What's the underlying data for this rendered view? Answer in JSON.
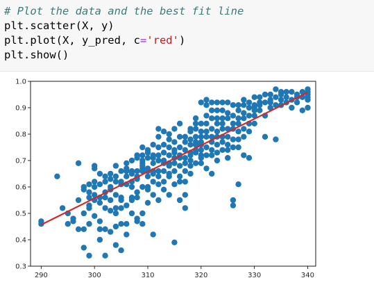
{
  "code": {
    "comment": "# Plot the data and the best fit line",
    "line2": "plt.scatter(X, y)",
    "line3_pre": "plt.plot(X, y_pred, c",
    "line3_op": "=",
    "line3_str": "'red'",
    "line3_post": ")",
    "line4": "plt.show()"
  },
  "colors": {
    "points": "#1f77b4",
    "fit_line": "#d62728",
    "code_bg": "#f7f7f7",
    "comment": "#3d7b7b",
    "string": "#ba2121"
  },
  "chart_data": {
    "type": "scatter",
    "xlim": [
      288,
      341.5
    ],
    "ylim": [
      0.3,
      1.0
    ],
    "x_ticks": [
      "290",
      "300",
      "310",
      "320",
      "330",
      "340"
    ],
    "y_ticks": [
      "0.3",
      "0.4",
      "0.5",
      "0.6",
      "0.7",
      "0.8",
      "0.9",
      "1.0"
    ],
    "grid": false,
    "legend": "none",
    "fit_line": {
      "x": [
        290,
        340
      ],
      "y": [
        0.457,
        0.958
      ],
      "color": "red"
    },
    "series": [
      {
        "points": [
          [
            290,
            0.46
          ],
          [
            290,
            0.47
          ],
          [
            293,
            0.64
          ],
          [
            294,
            0.52
          ],
          [
            295,
            0.46
          ],
          [
            295,
            0.5
          ],
          [
            296,
            0.47
          ],
          [
            296,
            0.48
          ],
          [
            297,
            0.55
          ],
          [
            297,
            0.69
          ],
          [
            297,
            0.44
          ],
          [
            298,
            0.59
          ],
          [
            298,
            0.5
          ],
          [
            298,
            0.44
          ],
          [
            298,
            0.37
          ],
          [
            298,
            0.6
          ],
          [
            299,
            0.56
          ],
          [
            299,
            0.58
          ],
          [
            299,
            0.52
          ],
          [
            299,
            0.61
          ],
          [
            299,
            0.53
          ],
          [
            299,
            0.34
          ],
          [
            299,
            0.46
          ],
          [
            300,
            0.68
          ],
          [
            300,
            0.57
          ],
          [
            300,
            0.49
          ],
          [
            300,
            0.62
          ],
          [
            300,
            0.55
          ],
          [
            300,
            0.67
          ],
          [
            300,
            0.6
          ],
          [
            301,
            0.61
          ],
          [
            301,
            0.47
          ],
          [
            301,
            0.44
          ],
          [
            301,
            0.4
          ],
          [
            301,
            0.54
          ],
          [
            301,
            0.65
          ],
          [
            301,
            0.56
          ],
          [
            302,
            0.34
          ],
          [
            302,
            0.62
          ],
          [
            302,
            0.58
          ],
          [
            302,
            0.52
          ],
          [
            302,
            0.44
          ],
          [
            302,
            0.64
          ],
          [
            302,
            0.56
          ],
          [
            303,
            0.63
          ],
          [
            303,
            0.59
          ],
          [
            303,
            0.65
          ],
          [
            303,
            0.55
          ],
          [
            303,
            0.43
          ],
          [
            303,
            0.51
          ],
          [
            303,
            0.6
          ],
          [
            304,
            0.57
          ],
          [
            304,
            0.52
          ],
          [
            304,
            0.62
          ],
          [
            304,
            0.5
          ],
          [
            304,
            0.45
          ],
          [
            304,
            0.38
          ],
          [
            304,
            0.64
          ],
          [
            304,
            0.68
          ],
          [
            305,
            0.55
          ],
          [
            305,
            0.56
          ],
          [
            305,
            0.52
          ],
          [
            305,
            0.66
          ],
          [
            305,
            0.61
          ],
          [
            305,
            0.46
          ],
          [
            305,
            0.36
          ],
          [
            305,
            0.62
          ],
          [
            306,
            0.67
          ],
          [
            306,
            0.69
          ],
          [
            306,
            0.64
          ],
          [
            306,
            0.53
          ],
          [
            306,
            0.46
          ],
          [
            306,
            0.61
          ],
          [
            306,
            0.66
          ],
          [
            306,
            0.42
          ],
          [
            307,
            0.7
          ],
          [
            307,
            0.56
          ],
          [
            307,
            0.6
          ],
          [
            307,
            0.66
          ],
          [
            307,
            0.5
          ],
          [
            307,
            0.65
          ],
          [
            307,
            0.55
          ],
          [
            307,
            0.62
          ],
          [
            308,
            0.63
          ],
          [
            308,
            0.66
          ],
          [
            308,
            0.72
          ],
          [
            308,
            0.58
          ],
          [
            308,
            0.56
          ],
          [
            308,
            0.48
          ],
          [
            308,
            0.64
          ],
          [
            308,
            0.71
          ],
          [
            308,
            0.47
          ],
          [
            309,
            0.72
          ],
          [
            309,
            0.69
          ],
          [
            309,
            0.67
          ],
          [
            309,
            0.6
          ],
          [
            309,
            0.68
          ],
          [
            309,
            0.66
          ],
          [
            309,
            0.5
          ],
          [
            309,
            0.46
          ],
          [
            309,
            0.75
          ],
          [
            309,
            0.7
          ],
          [
            310,
            0.74
          ],
          [
            310,
            0.71
          ],
          [
            310,
            0.67
          ],
          [
            310,
            0.59
          ],
          [
            310,
            0.73
          ],
          [
            310,
            0.54
          ],
          [
            310,
            0.64
          ],
          [
            310,
            0.6
          ],
          [
            310,
            0.66
          ],
          [
            311,
            0.69
          ],
          [
            311,
            0.76
          ],
          [
            311,
            0.66
          ],
          [
            311,
            0.72
          ],
          [
            311,
            0.57
          ],
          [
            311,
            0.71
          ],
          [
            311,
            0.62
          ],
          [
            311,
            0.42
          ],
          [
            311,
            0.65
          ],
          [
            312,
            0.7
          ],
          [
            312,
            0.61
          ],
          [
            312,
            0.79
          ],
          [
            312,
            0.75
          ],
          [
            312,
            0.64
          ],
          [
            312,
            0.55
          ],
          [
            312,
            0.72
          ],
          [
            312,
            0.82
          ],
          [
            312,
            0.66
          ],
          [
            313,
            0.73
          ],
          [
            313,
            0.7
          ],
          [
            313,
            0.76
          ],
          [
            313,
            0.62
          ],
          [
            313,
            0.69
          ],
          [
            313,
            0.59
          ],
          [
            313,
            0.81
          ],
          [
            313,
            0.66
          ],
          [
            314,
            0.72
          ],
          [
            314,
            0.78
          ],
          [
            314,
            0.68
          ],
          [
            314,
            0.57
          ],
          [
            314,
            0.75
          ],
          [
            314,
            0.69
          ],
          [
            314,
            0.64
          ],
          [
            314,
            0.8
          ],
          [
            314,
            0.65
          ],
          [
            315,
            0.74
          ],
          [
            315,
            0.71
          ],
          [
            315,
            0.69
          ],
          [
            315,
            0.77
          ],
          [
            315,
            0.61
          ],
          [
            315,
            0.66
          ],
          [
            315,
            0.82
          ],
          [
            315,
            0.73
          ],
          [
            315,
            0.39
          ],
          [
            316,
            0.71
          ],
          [
            316,
            0.68
          ],
          [
            316,
            0.75
          ],
          [
            316,
            0.64
          ],
          [
            316,
            0.55
          ],
          [
            316,
            0.72
          ],
          [
            316,
            0.84
          ],
          [
            316,
            0.79
          ],
          [
            316,
            0.62
          ],
          [
            317,
            0.71
          ],
          [
            317,
            0.77
          ],
          [
            317,
            0.66
          ],
          [
            317,
            0.74
          ],
          [
            317,
            0.69
          ],
          [
            317,
            0.57
          ],
          [
            317,
            0.62
          ],
          [
            317,
            0.79
          ],
          [
            317,
            0.52
          ],
          [
            318,
            0.72
          ],
          [
            318,
            0.78
          ],
          [
            318,
            0.76
          ],
          [
            318,
            0.68
          ],
          [
            318,
            0.73
          ],
          [
            318,
            0.65
          ],
          [
            318,
            0.82
          ],
          [
            318,
            0.81
          ],
          [
            318,
            0.7
          ],
          [
            319,
            0.74
          ],
          [
            319,
            0.84
          ],
          [
            319,
            0.77
          ],
          [
            319,
            0.69
          ],
          [
            319,
            0.79
          ],
          [
            319,
            0.73
          ],
          [
            319,
            0.82
          ],
          [
            319,
            0.76
          ],
          [
            319,
            0.86
          ],
          [
            320,
            0.72
          ],
          [
            320,
            0.79
          ],
          [
            320,
            0.84
          ],
          [
            320,
            0.74
          ],
          [
            320,
            0.69
          ],
          [
            320,
            0.77
          ],
          [
            320,
            0.81
          ],
          [
            320,
            0.92
          ],
          [
            320,
            0.71
          ],
          [
            320,
            0.76
          ],
          [
            321,
            0.75
          ],
          [
            321,
            0.81
          ],
          [
            321,
            0.84
          ],
          [
            321,
            0.79
          ],
          [
            321,
            0.72
          ],
          [
            321,
            0.67
          ],
          [
            321,
            0.87
          ],
          [
            321,
            0.91
          ],
          [
            321,
            0.93
          ],
          [
            322,
            0.82
          ],
          [
            322,
            0.77
          ],
          [
            322,
            0.86
          ],
          [
            322,
            0.72
          ],
          [
            322,
            0.79
          ],
          [
            322,
            0.89
          ],
          [
            322,
            0.74
          ],
          [
            322,
            0.92
          ],
          [
            322,
            0.65
          ],
          [
            323,
            0.76
          ],
          [
            323,
            0.81
          ],
          [
            323,
            0.84
          ],
          [
            323,
            0.73
          ],
          [
            323,
            0.79
          ],
          [
            323,
            0.86
          ],
          [
            323,
            0.92
          ],
          [
            323,
            0.7
          ],
          [
            323,
            0.89
          ],
          [
            324,
            0.82
          ],
          [
            324,
            0.86
          ],
          [
            324,
            0.79
          ],
          [
            324,
            0.74
          ],
          [
            324,
            0.92
          ],
          [
            324,
            0.89
          ],
          [
            324,
            0.84
          ],
          [
            324,
            0.77
          ],
          [
            325,
            0.76
          ],
          [
            325,
            0.86
          ],
          [
            325,
            0.82
          ],
          [
            325,
            0.92
          ],
          [
            325,
            0.79
          ],
          [
            325,
            0.71
          ],
          [
            325,
            0.88
          ],
          [
            325,
            0.74
          ],
          [
            326,
            0.84
          ],
          [
            326,
            0.78
          ],
          [
            326,
            0.82
          ],
          [
            326,
            0.91
          ],
          [
            326,
            0.87
          ],
          [
            326,
            0.75
          ],
          [
            326,
            0.55
          ],
          [
            326,
            0.53
          ],
          [
            327,
            0.81
          ],
          [
            327,
            0.86
          ],
          [
            327,
            0.78
          ],
          [
            327,
            0.91
          ],
          [
            327,
            0.84
          ],
          [
            327,
            0.75
          ],
          [
            327,
            0.89
          ],
          [
            327,
            0.61
          ],
          [
            328,
            0.88
          ],
          [
            328,
            0.82
          ],
          [
            328,
            0.79
          ],
          [
            328,
            0.86
          ],
          [
            328,
            0.93
          ],
          [
            328,
            0.91
          ],
          [
            328,
            0.72
          ],
          [
            329,
            0.84
          ],
          [
            329,
            0.9
          ],
          [
            329,
            0.87
          ],
          [
            329,
            0.81
          ],
          [
            329,
            0.92
          ],
          [
            329,
            0.71
          ],
          [
            330,
            0.91
          ],
          [
            330,
            0.87
          ],
          [
            330,
            0.84
          ],
          [
            330,
            0.94
          ],
          [
            330,
            0.89
          ],
          [
            330,
            0.9
          ],
          [
            331,
            0.92
          ],
          [
            331,
            0.89
          ],
          [
            331,
            0.94
          ],
          [
            331,
            0.91
          ],
          [
            332,
            0.92
          ],
          [
            332,
            0.87
          ],
          [
            332,
            0.95
          ],
          [
            332,
            0.79
          ],
          [
            333,
            0.93
          ],
          [
            333,
            0.9
          ],
          [
            333,
            0.95
          ],
          [
            333,
            0.92
          ],
          [
            334,
            0.94
          ],
          [
            334,
            0.91
          ],
          [
            334,
            0.97
          ],
          [
            334,
            0.78
          ],
          [
            335,
            0.95
          ],
          [
            335,
            0.93
          ],
          [
            335,
            0.96
          ],
          [
            335,
            0.91
          ],
          [
            336,
            0.94
          ],
          [
            336,
            0.96
          ],
          [
            336,
            0.92
          ],
          [
            337,
            0.93
          ],
          [
            337,
            0.96
          ],
          [
            337,
            0.9
          ],
          [
            338,
            0.94
          ],
          [
            338,
            0.95
          ],
          [
            338,
            0.92
          ],
          [
            339,
            0.94
          ],
          [
            339,
            0.96
          ],
          [
            339,
            0.89
          ],
          [
            340,
            0.96
          ],
          [
            340,
            0.97
          ],
          [
            340,
            0.93
          ],
          [
            340,
            0.95
          ],
          [
            340,
            0.9
          ],
          [
            340,
            0.94
          ]
        ]
      }
    ]
  }
}
